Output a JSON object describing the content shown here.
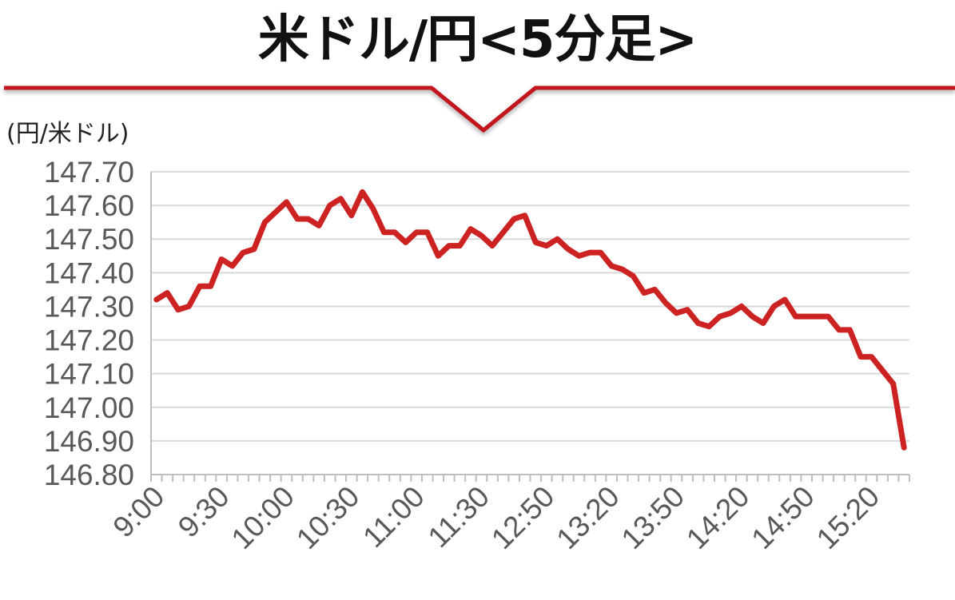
{
  "chart_data": {
    "type": "line",
    "title": "米ドル/円<5分足>",
    "ylabel": "(円/米ドル)",
    "xlabel": "",
    "ylim": [
      146.8,
      147.7
    ],
    "yticks": [
      "147.70",
      "147.60",
      "147.50",
      "147.40",
      "147.30",
      "147.20",
      "147.10",
      "147.00",
      "146.90",
      "146.80"
    ],
    "xtick_labels": [
      "9:00",
      "9:30",
      "10:00",
      "10:30",
      "11:00",
      "11:30",
      "12:50",
      "13:20",
      "13:50",
      "14:20",
      "14:50",
      "15:20"
    ],
    "grid": true,
    "series": [
      {
        "color": "#cc2222",
        "values": [
          147.32,
          147.34,
          147.29,
          147.3,
          147.36,
          147.36,
          147.44,
          147.42,
          147.46,
          147.47,
          147.55,
          147.58,
          147.61,
          147.56,
          147.56,
          147.54,
          147.6,
          147.62,
          147.57,
          147.64,
          147.59,
          147.52,
          147.52,
          147.49,
          147.52,
          147.52,
          147.45,
          147.48,
          147.48,
          147.53,
          147.51,
          147.48,
          147.52,
          147.56,
          147.57,
          147.49,
          147.48,
          147.5,
          147.47,
          147.45,
          147.46,
          147.46,
          147.42,
          147.41,
          147.39,
          147.34,
          147.35,
          147.31,
          147.28,
          147.29,
          147.25,
          147.24,
          147.27,
          147.28,
          147.3,
          147.27,
          147.25,
          147.3,
          147.32,
          147.27,
          147.27,
          147.27,
          147.27,
          147.23,
          147.23,
          147.15,
          147.15,
          147.11,
          147.07,
          146.88
        ]
      }
    ]
  },
  "colors": {
    "title_rule": "#c0171d",
    "line": "#cc2222",
    "grid": "#d9d9d9",
    "axis": "#bfbfbf",
    "tick_text": "#595959"
  }
}
